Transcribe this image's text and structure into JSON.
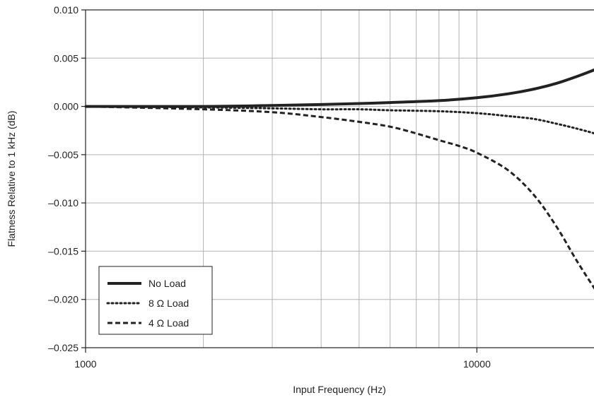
{
  "chart_data": {
    "type": "line",
    "title": "",
    "xlabel": "Input Frequency (Hz)",
    "ylabel": "Flatness Relative to 1 kHz (dB)",
    "xscale": "log",
    "xlim": [
      1000,
      20000
    ],
    "ylim": [
      -0.025,
      0.01
    ],
    "grid": true,
    "legend_position": "bottom-left",
    "x_ticks": [
      {
        "value": 1000,
        "label": "1000"
      },
      {
        "value": 10000,
        "label": "10000"
      }
    ],
    "y_ticks": [
      {
        "value": 0.01,
        "label": "0.010"
      },
      {
        "value": 0.005,
        "label": "0.005"
      },
      {
        "value": 0.0,
        "label": "0.000"
      },
      {
        "value": -0.005,
        "label": "–0.005"
      },
      {
        "value": -0.01,
        "label": "–0.010"
      },
      {
        "value": -0.015,
        "label": "–0.015"
      },
      {
        "value": -0.02,
        "label": "–0.020"
      },
      {
        "value": -0.025,
        "label": "–0.025"
      }
    ],
    "series": [
      {
        "name": "No Load",
        "style": "solid",
        "color": "#222222",
        "x": [
          1000,
          2000,
          3000,
          4000,
          5000,
          6000,
          8000,
          10000,
          12000,
          14000,
          16000,
          18000,
          20000
        ],
        "y": [
          0.0,
          0.0,
          0.0001,
          0.0002,
          0.0003,
          0.0004,
          0.0006,
          0.0009,
          0.0013,
          0.0018,
          0.0024,
          0.0031,
          0.0038
        ]
      },
      {
        "name": "8 Ω Load",
        "style": "dotted",
        "color": "#222222",
        "x": [
          1000,
          2000,
          3000,
          4000,
          5000,
          6000,
          8000,
          10000,
          12000,
          14000,
          16000,
          18000,
          20000
        ],
        "y": [
          0.0,
          -0.0001,
          -0.0002,
          -0.0003,
          -0.0003,
          -0.0004,
          -0.0005,
          -0.0007,
          -0.001,
          -0.0013,
          -0.0018,
          -0.0023,
          -0.0028
        ]
      },
      {
        "name": "4 Ω Load",
        "style": "dashed",
        "color": "#222222",
        "x": [
          1000,
          2000,
          3000,
          4000,
          5000,
          6000,
          7000,
          8000,
          9000,
          10000,
          12000,
          14000,
          16000,
          18000,
          20000
        ],
        "y": [
          0.0,
          -0.0003,
          -0.0006,
          -0.0011,
          -0.0016,
          -0.0021,
          -0.0028,
          -0.0035,
          -0.0041,
          -0.0048,
          -0.0066,
          -0.0092,
          -0.0125,
          -0.016,
          -0.0189
        ]
      }
    ]
  }
}
